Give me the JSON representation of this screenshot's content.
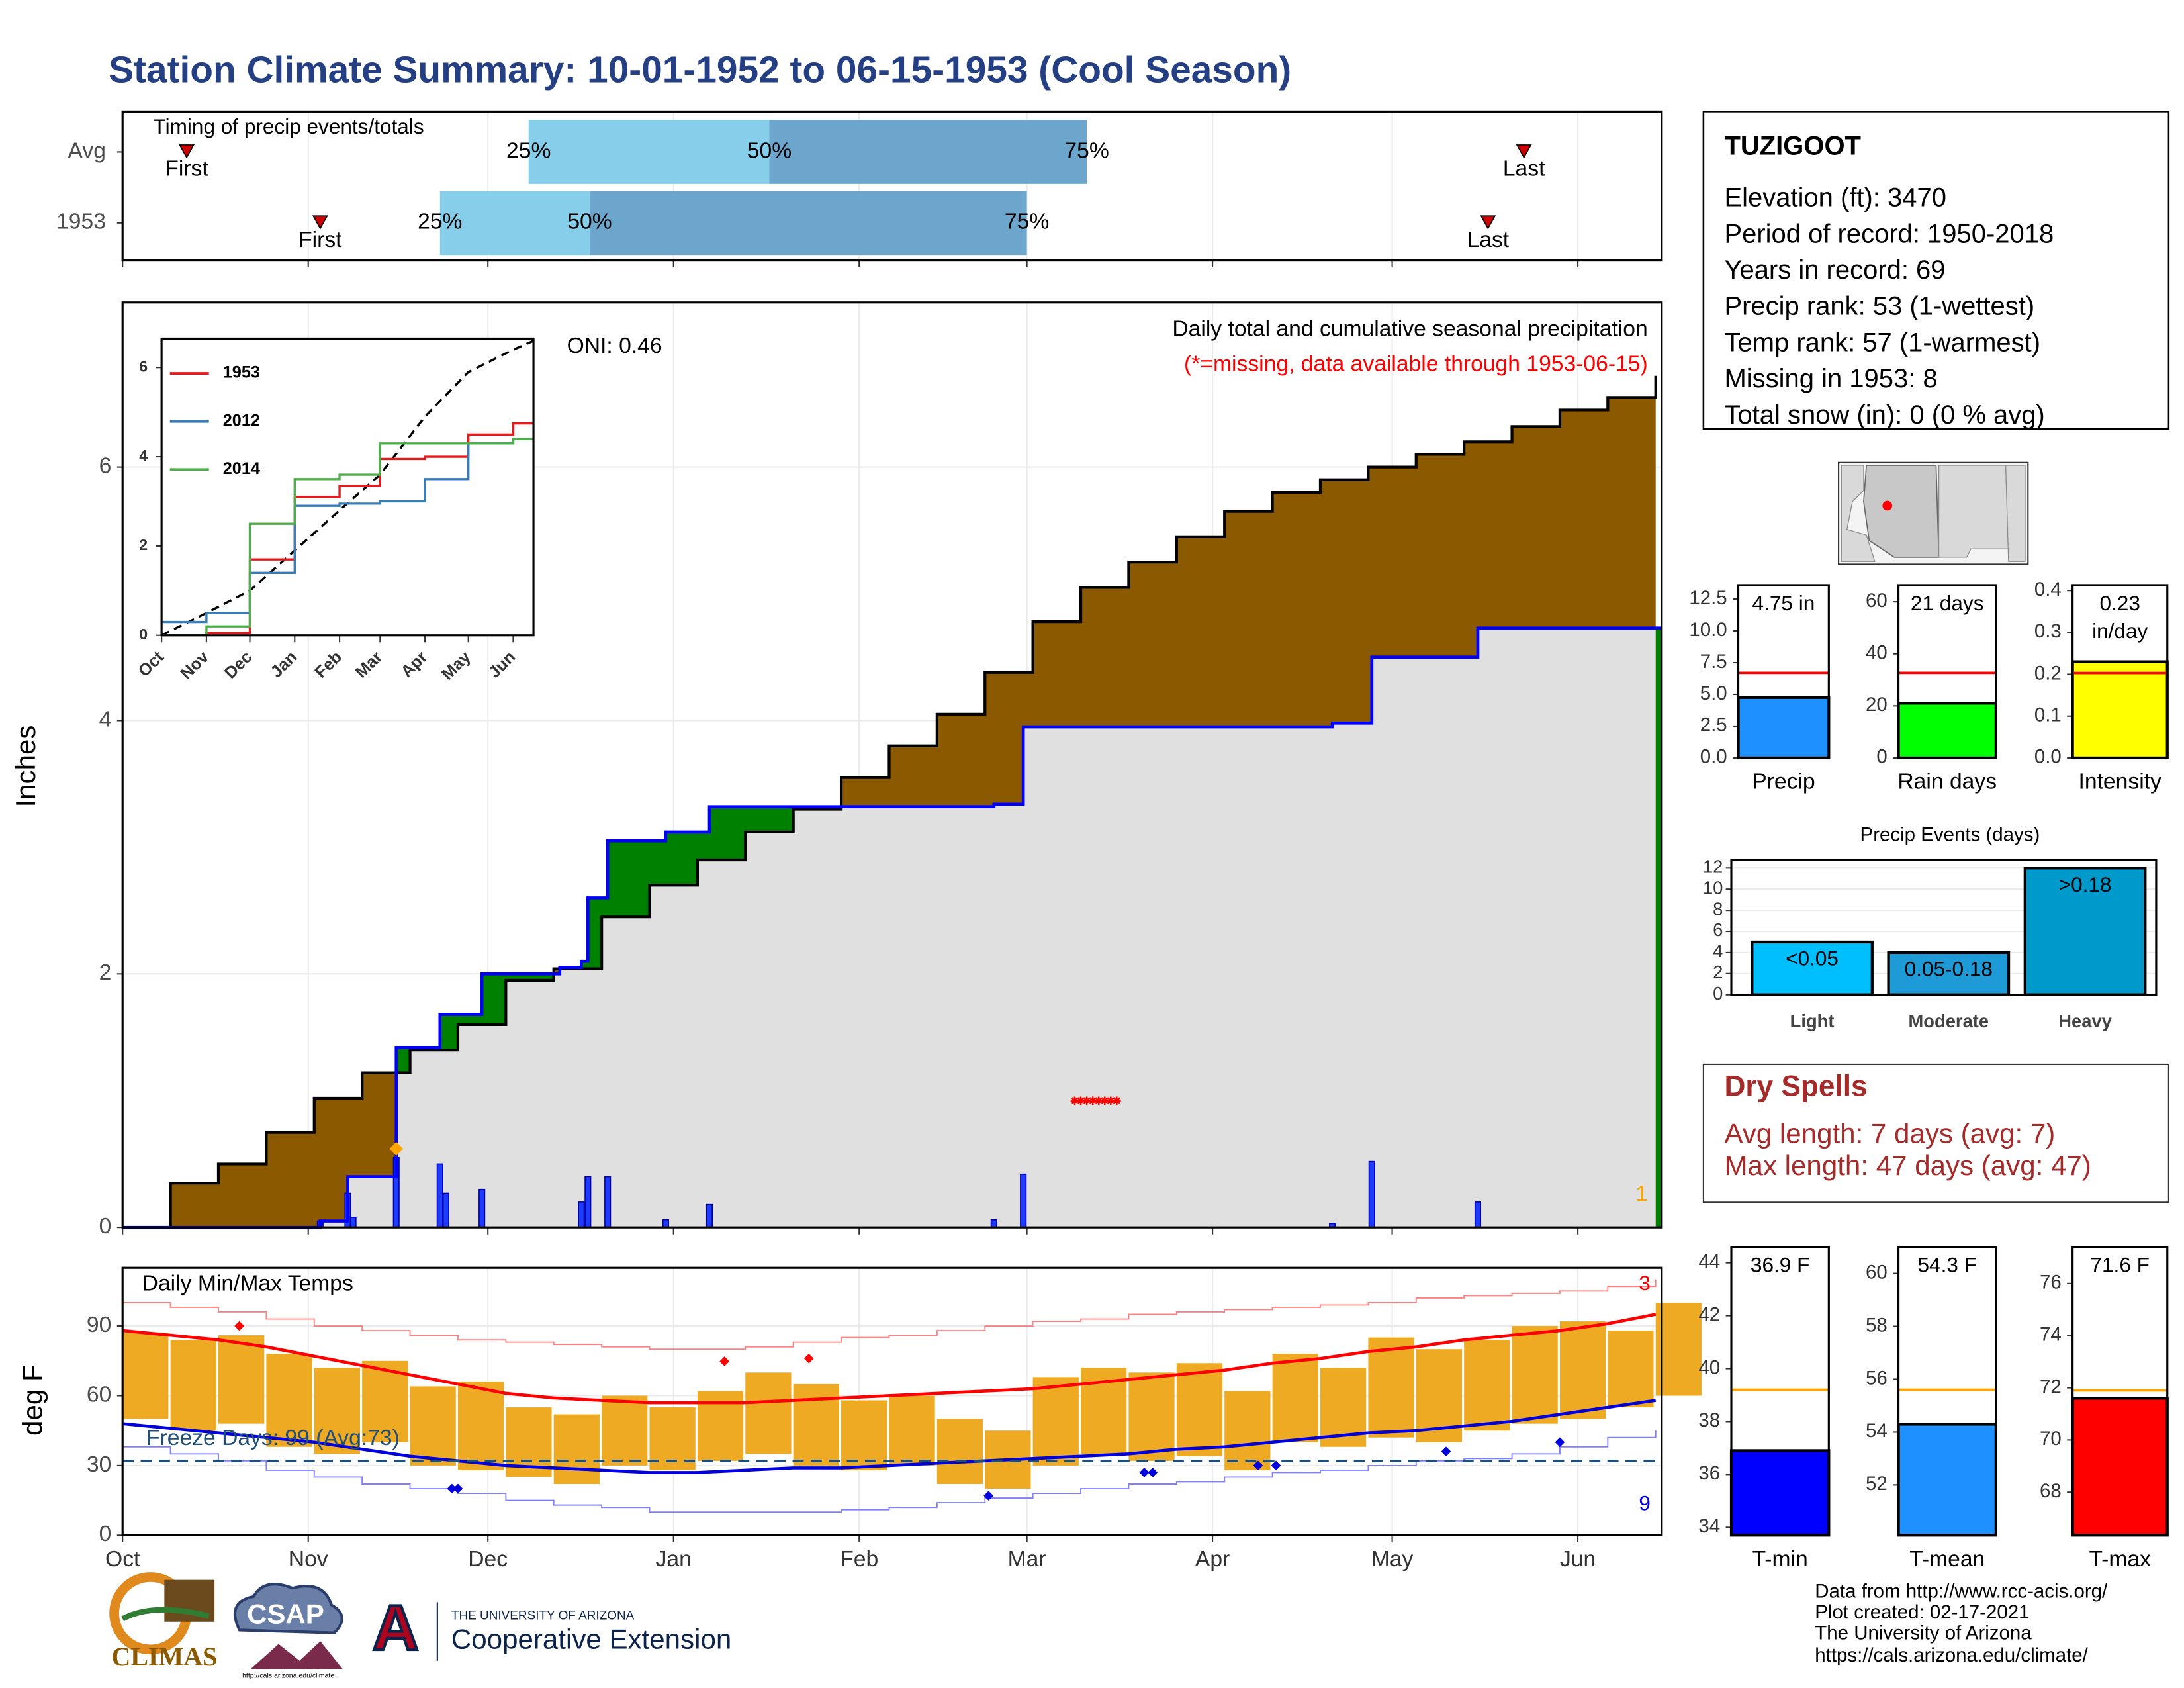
{
  "title": "Station Climate Summary: 10-01-1952 to 06-15-1953 (Cool Season)",
  "station": {
    "name": "TUZIGOOT",
    "lines": [
      "Elevation (ft): 3470",
      "Period of record: 1950-2018",
      "Years in record: 69",
      "Precip rank: 53 (1-wettest)",
      "Temp rank: 57 (1-warmest)",
      "Missing in 1953: 8",
      "Total snow (in): 0 (0 % avg)"
    ]
  },
  "dry_spells": {
    "title": "Dry Spells",
    "lines": [
      "Avg length: 7 days (avg: 7)",
      "Max length: 47 days (avg: 47)"
    ]
  },
  "footer": [
    "Data from http://www.rcc-acis.org/",
    "Plot created: 02-17-2021",
    "The University of Arizona",
    "https://cals.arizona.edu/climate/"
  ],
  "logos": {
    "climas": "CLIMAS",
    "csap": "CSAP",
    "csap_url": "http://cals.arizona.edu/climate",
    "ua_letter": "A",
    "ua_name": "THE UNIVERSITY OF ARIZONA",
    "ua_unit": "Cooperative Extension"
  },
  "chart_data": [
    {
      "type": "timing",
      "title": "Timing of precip events/totals",
      "categories": [
        "Avg",
        "1953"
      ],
      "xlim": [
        0,
        257
      ],
      "xticks": [
        0,
        31,
        61,
        92,
        123,
        151,
        182,
        212,
        243
      ],
      "grid": true,
      "q25": [
        67.8,
        53
      ],
      "q50": [
        108,
        78
      ],
      "q75": [
        161,
        151
      ],
      "first": [
        10.7,
        33
      ],
      "last": [
        234,
        228
      ],
      "labels": {
        "q25": "25%",
        "q50": "50%",
        "q75": "75%",
        "first": "First",
        "last": "Last"
      },
      "colors": {
        "lower": "#87ceeb",
        "upper": "#6ca6cd",
        "marker": "#cc0000"
      }
    },
    {
      "type": "cumulative",
      "title": "Daily total and cumulative seasonal precipitation",
      "subtitle": "(*=missing, data available through 1953-06-15)",
      "annotation": "ONI: 0.46",
      "ylabel": "Inches",
      "corner_label": "1",
      "xlim": [
        0,
        257
      ],
      "ylim": [
        0,
        7.3
      ],
      "yticks": [
        0,
        2,
        4,
        6
      ],
      "xticks": [
        0,
        31,
        61,
        92,
        123,
        151,
        182,
        212,
        243
      ],
      "grid": true,
      "avg_x": [
        0,
        8,
        16,
        24,
        32,
        40,
        48,
        56,
        64,
        72,
        80,
        88,
        96,
        104,
        112,
        120,
        128,
        136,
        144,
        152,
        160,
        168,
        176,
        184,
        192,
        200,
        208,
        216,
        224,
        232,
        240,
        248,
        256
      ],
      "avg": [
        0,
        0.35,
        0.5,
        0.75,
        1.02,
        1.22,
        1.4,
        1.6,
        1.95,
        2.04,
        2.45,
        2.7,
        2.9,
        3.12,
        3.3,
        3.55,
        3.8,
        4.05,
        4.38,
        4.78,
        5.05,
        5.25,
        5.45,
        5.65,
        5.8,
        5.9,
        6.0,
        6.1,
        6.2,
        6.32,
        6.45,
        6.55,
        6.72
      ],
      "obs_x": [
        0,
        33,
        37.6,
        45.7,
        53,
        60,
        73,
        76.6,
        77.7,
        81,
        90.7,
        98,
        145.5,
        150.4,
        202,
        208.6,
        226.3,
        257
      ],
      "obs": [
        0,
        0.05,
        0.4,
        1.42,
        1.68,
        2.0,
        2.05,
        2.1,
        2.6,
        3.05,
        3.12,
        3.32,
        3.34,
        3.95,
        3.98,
        4.5,
        4.73,
        4.73
      ],
      "daily_x": [
        33,
        37.6,
        38.5,
        45.7,
        53,
        54,
        60,
        76.6,
        77.7,
        81,
        90.7,
        98,
        145.5,
        150.4,
        202,
        208.6,
        226.3
      ],
      "daily": [
        0.05,
        0.27,
        0.08,
        0.55,
        0.5,
        0.27,
        0.3,
        0.2,
        0.4,
        0.4,
        0.06,
        0.18,
        0.06,
        0.42,
        0.03,
        0.52,
        0.2
      ],
      "missing_x": [
        159,
        160,
        161,
        162,
        163,
        164,
        165,
        166
      ],
      "missing_y": 1.0,
      "snow_x": 45.7,
      "snow_y": 0.62,
      "colors": {
        "below": "#8b5a00",
        "above": "#008000",
        "base": "#e0e0e0",
        "obs": "#0000ff",
        "avg": "#000000",
        "daily": "#1e3cff",
        "missing": "#ff0000",
        "snow": "#ffa500"
      }
    },
    {
      "type": "line",
      "xlim": [
        0,
        257
      ],
      "ylim": [
        0,
        6.65
      ],
      "yticks": [
        0,
        2,
        4,
        6
      ],
      "xticks": [
        {
          "value": 0,
          "label": "Oct"
        },
        {
          "value": 31,
          "label": "Nov"
        },
        {
          "value": 61,
          "label": "Dec"
        },
        {
          "value": 92,
          "label": "Jan"
        },
        {
          "value": 123,
          "label": "Feb"
        },
        {
          "value": 151,
          "label": "Mar"
        },
        {
          "value": 182,
          "label": "Apr"
        },
        {
          "value": 212,
          "label": "May"
        },
        {
          "value": 243,
          "label": "Jun"
        }
      ],
      "x": [
        0,
        31,
        61,
        92,
        123,
        151,
        182,
        212,
        243,
        257
      ],
      "series": [
        {
          "name": "1953",
          "color": "#e41a1c",
          "values": [
            0,
            0.05,
            1.7,
            3.1,
            3.35,
            3.95,
            4.0,
            4.5,
            4.75,
            4.75
          ]
        },
        {
          "name": "2012",
          "color": "#377eb8",
          "values": [
            0.3,
            0.5,
            1.4,
            2.9,
            2.95,
            3.0,
            3.5,
            4.3,
            4.4,
            4.4
          ]
        },
        {
          "name": "2014",
          "color": "#4daf4a",
          "values": [
            0,
            0.2,
            2.5,
            3.5,
            3.6,
            4.3,
            4.3,
            4.3,
            4.4,
            4.4
          ]
        }
      ],
      "avg_values": [
        0,
        0.5,
        1.0,
        1.9,
        2.8,
        3.6,
        4.9,
        5.9,
        6.4,
        6.6
      ]
    },
    {
      "type": "bar_ref",
      "categories": [
        "Precip"
      ],
      "values": [
        4.75
      ],
      "value_labels": [
        "4.75 in"
      ],
      "reference": 6.7,
      "ylim": [
        0,
        13.6
      ],
      "yticks": [
        {
          "value": 0,
          "label": "0.0"
        },
        2.5,
        {
          "value": 5,
          "label": "5.0"
        },
        7.5,
        {
          "value": 10,
          "label": "10.0"
        },
        12.5
      ],
      "color": "#1e90ff",
      "ref_color": "#ff0000"
    },
    {
      "type": "bar_ref",
      "categories": [
        "Rain days"
      ],
      "values": [
        21
      ],
      "value_labels": [
        "21 days"
      ],
      "reference": 32.7,
      "ylim": [
        0,
        66.4
      ],
      "yticks": [
        0,
        20,
        40,
        60
      ],
      "color": "#00ff00",
      "ref_color": "#ff0000"
    },
    {
      "type": "bar_ref",
      "categories": [
        "Intensity"
      ],
      "values": [
        0.23
      ],
      "value_labels": [
        "0.23 in/day"
      ],
      "reference": 0.203,
      "ylim": [
        0,
        0.413
      ],
      "yticks": [
        {
          "value": 0,
          "label": "0.0"
        },
        0.1,
        0.2,
        0.3,
        0.4
      ],
      "color": "#ffff00",
      "ref_color": "#ff0000"
    },
    {
      "type": "bar",
      "title": "Precip Events (days)",
      "categories": [
        "Light",
        "Moderate",
        "Heavy"
      ],
      "values": [
        5,
        4,
        12
      ],
      "bar_labels": [
        "<0.05",
        "0.05-0.18",
        ">0.18"
      ],
      "ylim": [
        0,
        12.8
      ],
      "yticks": [
        0,
        2,
        4,
        6,
        8,
        10,
        12
      ],
      "grid": true,
      "colors": [
        "#00bfff",
        "#1e9bd7",
        "#0099cc"
      ]
    },
    {
      "type": "temperature",
      "title": "Daily Min/Max Temps",
      "ylabel": "deg F",
      "xlim": [
        0,
        257
      ],
      "ylim": [
        0,
        115
      ],
      "yticks": [
        0,
        30,
        60,
        90
      ],
      "grid": true,
      "xticks": [
        {
          "value": 0,
          "label": "Oct"
        },
        {
          "value": 31,
          "label": "Nov"
        },
        {
          "value": 61,
          "label": "Dec"
        },
        {
          "value": 92,
          "label": "Jan"
        },
        {
          "value": 123,
          "label": "Feb"
        },
        {
          "value": 151,
          "label": "Mar"
        },
        {
          "value": 182,
          "label": "Apr"
        },
        {
          "value": 212,
          "label": "May"
        },
        {
          "value": 243,
          "label": "Jun"
        }
      ],
      "x": [
        0,
        8,
        16,
        24,
        32,
        40,
        48,
        56,
        64,
        72,
        80,
        88,
        96,
        104,
        112,
        120,
        128,
        136,
        144,
        152,
        160,
        168,
        176,
        184,
        192,
        200,
        208,
        216,
        224,
        232,
        240,
        248,
        256
      ],
      "max": [
        87,
        84,
        86,
        78,
        72,
        75,
        64,
        66,
        55,
        52,
        60,
        55,
        62,
        70,
        65,
        58,
        60,
        50,
        45,
        68,
        72,
        70,
        74,
        62,
        78,
        72,
        85,
        80,
        84,
        90,
        92,
        88,
        100
      ],
      "min": [
        50,
        45,
        48,
        38,
        35,
        40,
        30,
        28,
        25,
        22,
        30,
        28,
        32,
        35,
        30,
        28,
        30,
        22,
        20,
        30,
        35,
        32,
        34,
        28,
        40,
        38,
        42,
        40,
        45,
        48,
        50,
        55,
        60
      ],
      "avg_max": [
        88,
        86,
        84,
        81,
        77,
        73,
        69,
        65,
        61,
        59,
        58,
        57,
        57,
        57,
        58,
        59,
        60,
        61,
        62,
        63,
        65,
        67,
        69,
        71,
        74,
        76,
        79,
        81,
        84,
        86,
        88,
        91,
        95
      ],
      "avg_min": [
        48,
        46,
        44,
        42,
        40,
        37,
        34,
        32,
        30,
        29,
        28,
        27,
        27,
        28,
        29,
        29,
        30,
        31,
        32,
        33,
        34,
        35,
        37,
        38,
        40,
        42,
        44,
        45,
        47,
        49,
        52,
        55,
        58
      ],
      "record_max": [
        100,
        98,
        96,
        93,
        90,
        88,
        86,
        84,
        83,
        82,
        81,
        80,
        80,
        81,
        83,
        85,
        86,
        88,
        90,
        92,
        93,
        95,
        96,
        97,
        98,
        99,
        100,
        102,
        103,
        104,
        105,
        107,
        110
      ],
      "record_min": [
        38,
        35,
        32,
        28,
        25,
        22,
        20,
        18,
        15,
        13,
        12,
        10,
        10,
        10,
        10,
        11,
        12,
        14,
        16,
        18,
        20,
        22,
        23,
        25,
        27,
        28,
        30,
        32,
        33,
        35,
        38,
        42,
        45
      ],
      "record_high_x": [
        19.5,
        100.5,
        114.6
      ],
      "record_high_y": [
        90,
        74.8,
        76
      ],
      "record_low_x": [
        55,
        56,
        144.6,
        170.6,
        172,
        189.6,
        192.6,
        221,
        240
      ],
      "record_low_y": [
        20,
        20,
        17,
        27,
        27,
        30,
        30,
        36,
        40
      ],
      "record_high_count": "3",
      "record_low_count": "9",
      "freeze_line": 32,
      "freeze_label": "Freeze Days: 99 (Avg:73)",
      "colors": {
        "bars": "#eeaa22",
        "avg_max": "#ff0000",
        "avg_min": "#0000dd",
        "record_max": "#ff8080",
        "record_min": "#7f7fff",
        "freeze": "#1f4e79"
      }
    },
    {
      "type": "bar_ref",
      "categories": [
        "T-min"
      ],
      "values": [
        36.9
      ],
      "value_labels": [
        "36.9 F"
      ],
      "reference": 39.2,
      "ylim": [
        33.7,
        44.6
      ],
      "yticks": [
        34,
        36,
        38,
        40,
        42,
        44
      ],
      "color": "#0000ff",
      "ref_color": "#ffa500"
    },
    {
      "type": "bar_ref",
      "categories": [
        "T-mean"
      ],
      "values": [
        54.3
      ],
      "value_labels": [
        "54.3 F"
      ],
      "reference": 55.6,
      "ylim": [
        50.1,
        61.0
      ],
      "yticks": [
        52,
        54,
        56,
        58,
        60
      ],
      "color": "#1e90ff",
      "ref_color": "#ffa500"
    },
    {
      "type": "bar_ref",
      "categories": [
        "T-max"
      ],
      "values": [
        71.6
      ],
      "value_labels": [
        "71.6 F"
      ],
      "reference": 71.9,
      "ylim": [
        66.35,
        77.4
      ],
      "yticks": [
        68,
        70,
        72,
        74,
        76
      ],
      "color": "#ff0000",
      "ref_color": "#ffa500"
    }
  ]
}
